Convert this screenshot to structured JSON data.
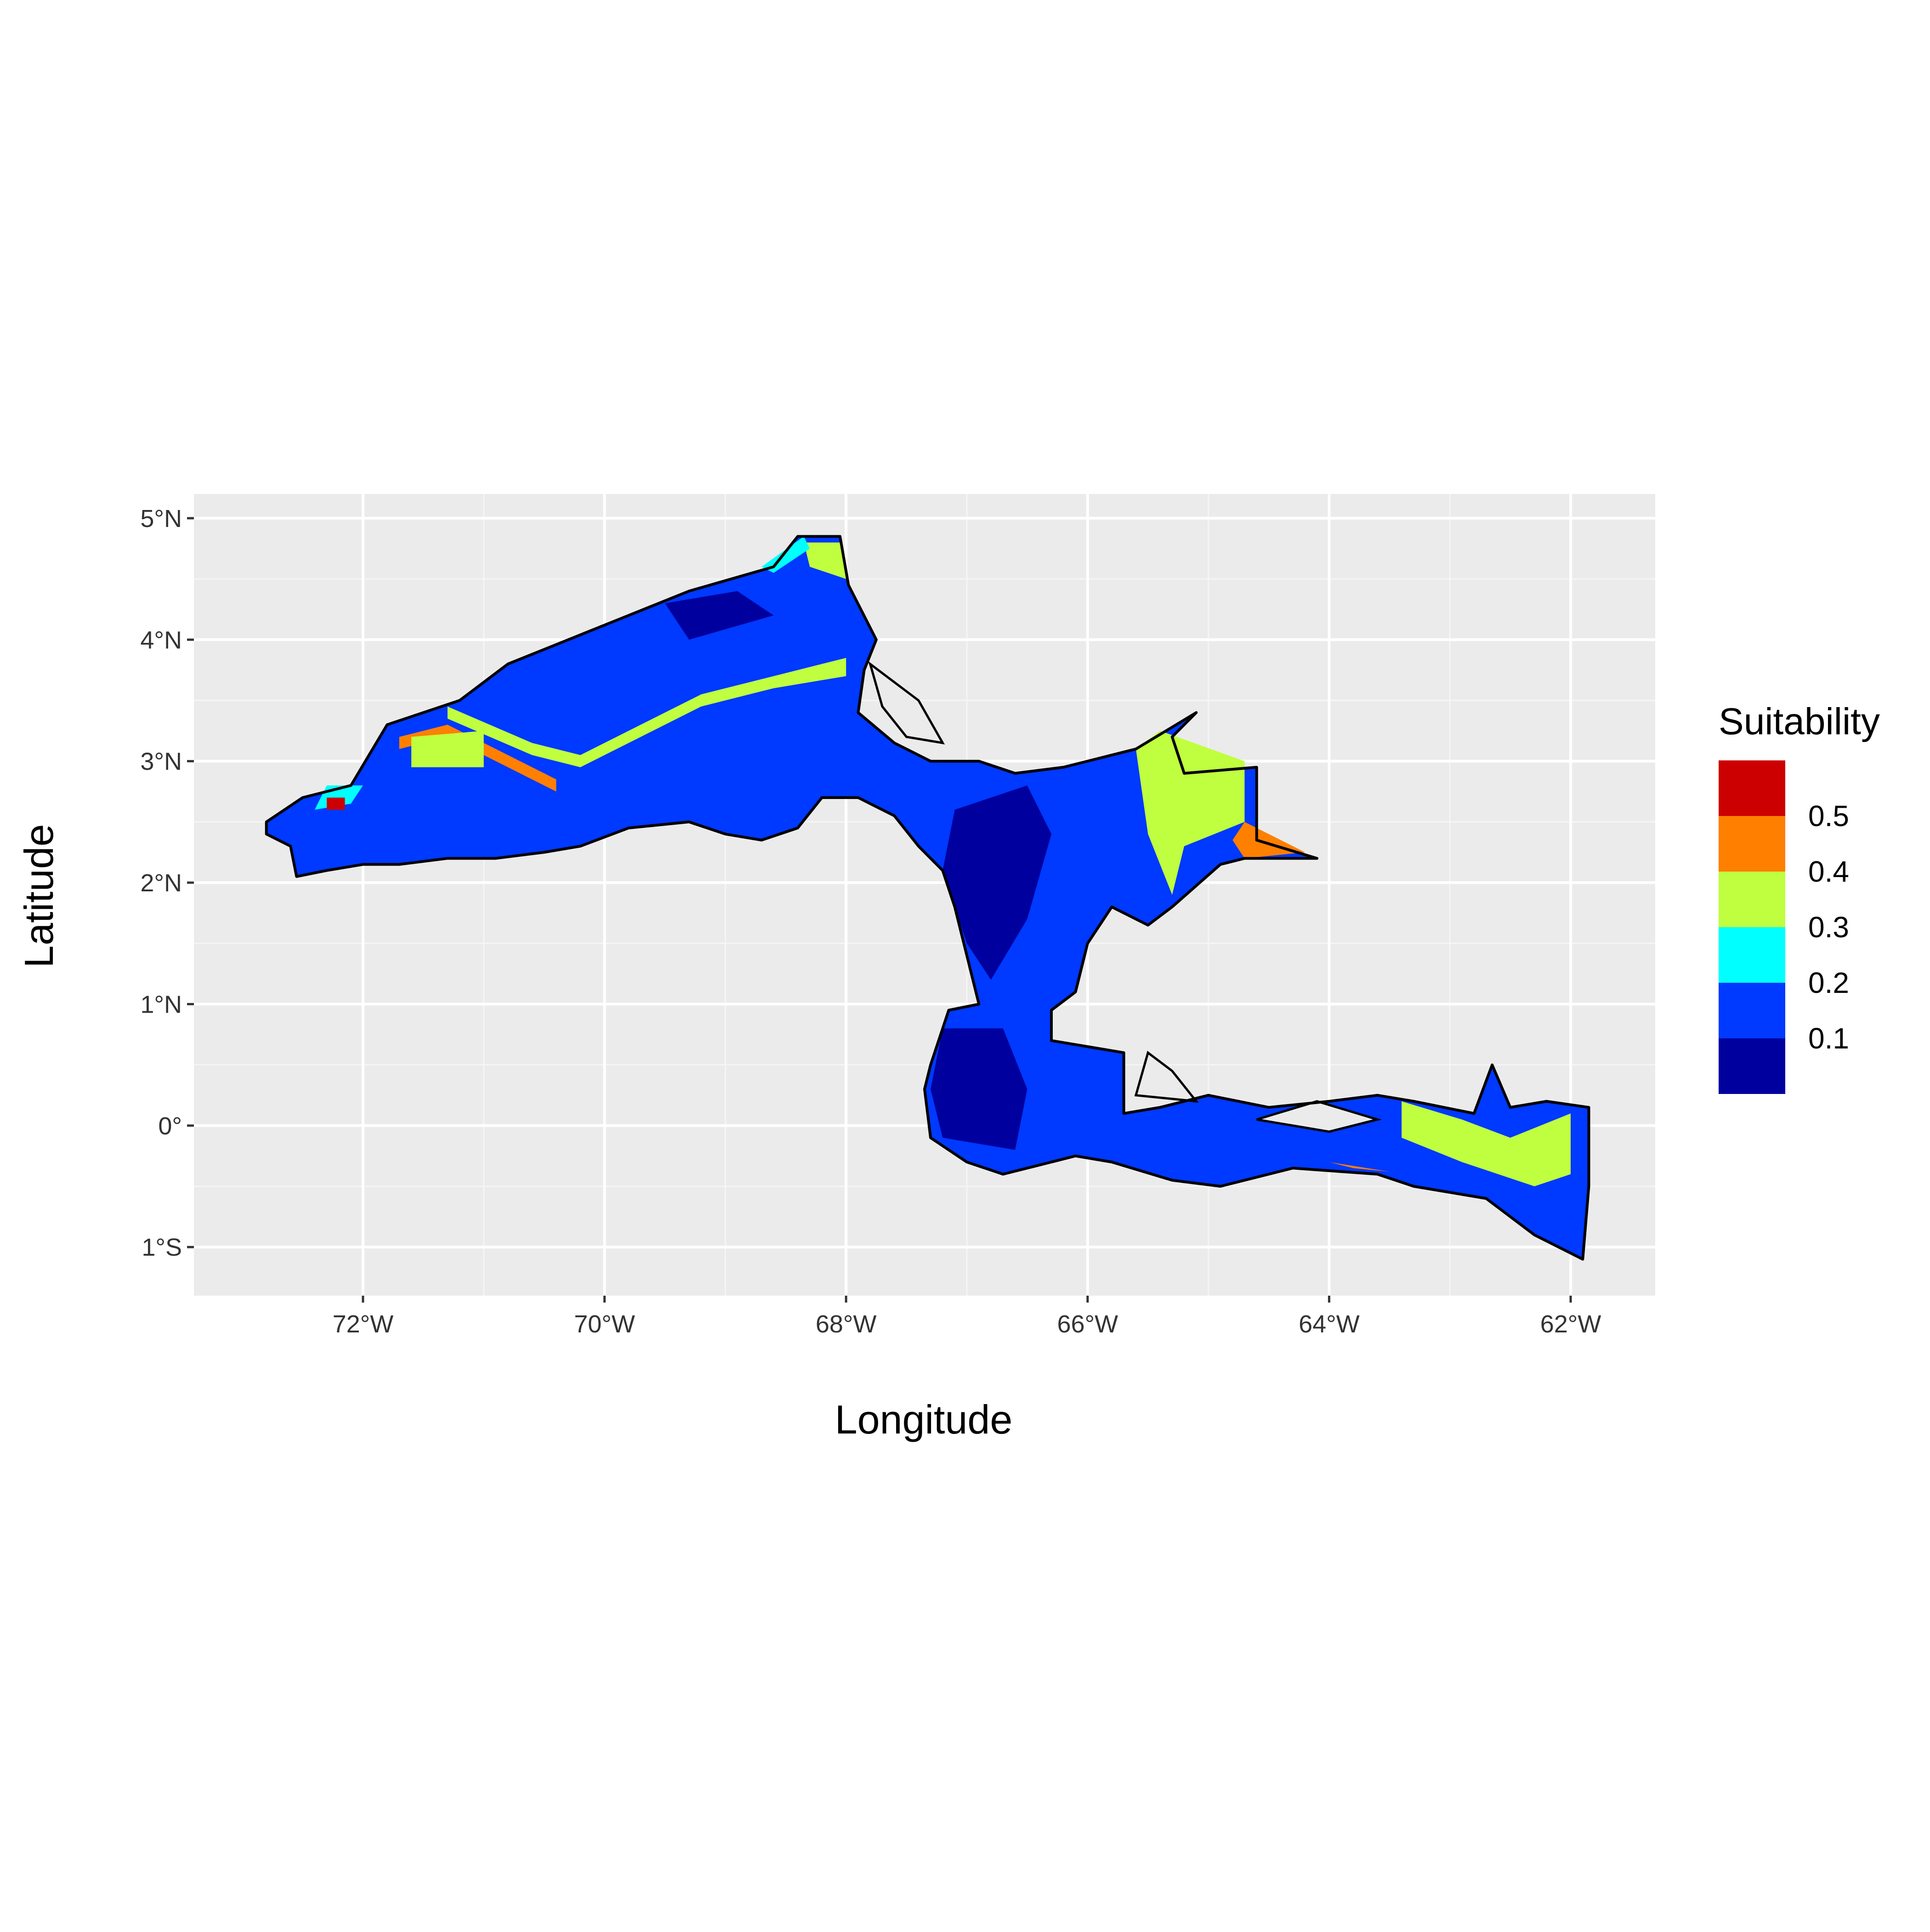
{
  "chart_data": {
    "type": "heatmap",
    "xlabel": "Longitude",
    "ylabel": "Latitude",
    "xlim": [
      -73.4,
      -61.3
    ],
    "ylim": [
      -1.4,
      5.2
    ],
    "grid": true,
    "legend_position": "right",
    "x_ticks": [
      {
        "value": -72,
        "label": "72°W"
      },
      {
        "value": -70,
        "label": "70°W"
      },
      {
        "value": -68,
        "label": "68°W"
      },
      {
        "value": -66,
        "label": "66°W"
      },
      {
        "value": -64,
        "label": "64°W"
      },
      {
        "value": -62,
        "label": "62°W"
      }
    ],
    "y_ticks": [
      {
        "value": 5,
        "label": "5°N"
      },
      {
        "value": 4,
        "label": "4°N"
      },
      {
        "value": 3,
        "label": "3°N"
      },
      {
        "value": 2,
        "label": "2°N"
      },
      {
        "value": 1,
        "label": "1°N"
      },
      {
        "value": 0,
        "label": "0°"
      },
      {
        "value": -1,
        "label": "1°S"
      }
    ],
    "legend": {
      "title": "Suitability",
      "labels": [
        "0.5",
        "0.4",
        "0.3",
        "0.2",
        "0.1"
      ],
      "classes": [
        {
          "color": "#CC0000"
        },
        {
          "color": "#FF7F00"
        },
        {
          "color": "#BFFF40"
        },
        {
          "color": "#00FFFF"
        },
        {
          "color": "#0039FF"
        },
        {
          "color": "#00009F"
        }
      ]
    },
    "base_class": 1,
    "regions": [
      {
        "name": "west-basin",
        "polygon": [
          [
            -72.8,
            2.5
          ],
          [
            -72.5,
            2.7
          ],
          [
            -72.1,
            2.8
          ],
          [
            -71.8,
            3.3
          ],
          [
            -71.2,
            3.5
          ],
          [
            -70.8,
            3.8
          ],
          [
            -70.3,
            4.0
          ],
          [
            -69.8,
            4.2
          ],
          [
            -69.3,
            4.4
          ],
          [
            -68.6,
            4.6
          ],
          [
            -68.4,
            4.85
          ],
          [
            -68.05,
            4.85
          ],
          [
            -67.98,
            4.45
          ],
          [
            -67.75,
            4.0
          ],
          [
            -67.85,
            3.75
          ],
          [
            -67.9,
            3.4
          ],
          [
            -67.6,
            3.15
          ],
          [
            -67.3,
            3.0
          ],
          [
            -66.9,
            3.0
          ],
          [
            -66.6,
            2.9
          ],
          [
            -66.2,
            2.95
          ],
          [
            -65.6,
            3.1
          ],
          [
            -65.1,
            3.4
          ],
          [
            -65.3,
            3.2
          ],
          [
            -65.2,
            2.9
          ],
          [
            -64.6,
            2.95
          ],
          [
            -64.6,
            2.55
          ],
          [
            -64.6,
            2.35
          ],
          [
            -64.1,
            2.2
          ],
          [
            -64.7,
            2.2
          ],
          [
            -64.9,
            2.15
          ],
          [
            -65.3,
            1.8
          ],
          [
            -65.5,
            1.65
          ],
          [
            -65.8,
            1.8
          ],
          [
            -66.0,
            1.5
          ],
          [
            -66.1,
            1.1
          ],
          [
            -66.3,
            0.95
          ],
          [
            -66.3,
            0.7
          ],
          [
            -66.0,
            0.65
          ],
          [
            -65.7,
            0.6
          ],
          [
            -65.7,
            0.1
          ],
          [
            -65.4,
            0.15
          ],
          [
            -65.0,
            0.25
          ],
          [
            -64.5,
            0.15
          ],
          [
            -64.0,
            0.2
          ],
          [
            -63.6,
            0.25
          ],
          [
            -63.3,
            0.2
          ],
          [
            -62.8,
            0.1
          ],
          [
            -62.65,
            0.5
          ],
          [
            -62.5,
            0.15
          ],
          [
            -62.2,
            0.2
          ],
          [
            -61.85,
            0.15
          ],
          [
            -61.85,
            -0.5
          ],
          [
            -61.9,
            -1.1
          ],
          [
            -62.3,
            -0.9
          ],
          [
            -62.7,
            -0.6
          ],
          [
            -63.3,
            -0.5
          ],
          [
            -63.6,
            -0.4
          ],
          [
            -64.3,
            -0.35
          ],
          [
            -64.9,
            -0.5
          ],
          [
            -65.3,
            -0.45
          ],
          [
            -65.8,
            -0.3
          ],
          [
            -66.1,
            -0.25
          ],
          [
            -66.3,
            -0.3
          ],
          [
            -66.7,
            -0.4
          ],
          [
            -67.0,
            -0.3
          ],
          [
            -67.3,
            -0.1
          ],
          [
            -67.35,
            0.3
          ],
          [
            -67.3,
            0.5
          ],
          [
            -67.15,
            0.95
          ],
          [
            -66.9,
            1.0
          ],
          [
            -67.0,
            1.4
          ],
          [
            -67.1,
            1.8
          ],
          [
            -67.2,
            2.1
          ],
          [
            -67.4,
            2.3
          ],
          [
            -67.6,
            2.55
          ],
          [
            -67.9,
            2.7
          ],
          [
            -68.2,
            2.7
          ],
          [
            -68.4,
            2.45
          ],
          [
            -68.7,
            2.35
          ],
          [
            -69.0,
            2.4
          ],
          [
            -69.3,
            2.5
          ],
          [
            -69.8,
            2.45
          ],
          [
            -70.2,
            2.3
          ],
          [
            -70.5,
            2.25
          ],
          [
            -70.9,
            2.2
          ],
          [
            -71.3,
            2.2
          ],
          [
            -71.7,
            2.15
          ],
          [
            -72.0,
            2.15
          ],
          [
            -72.3,
            2.1
          ],
          [
            -72.55,
            2.05
          ],
          [
            -72.6,
            2.3
          ],
          [
            -72.8,
            2.4
          ]
        ]
      },
      {
        "name": "cyan-stripe-a",
        "class": 3,
        "polygon": [
          [
            -71.3,
            3.45
          ],
          [
            -70.6,
            3.15
          ],
          [
            -70.2,
            3.05
          ],
          [
            -69.9,
            3.2
          ],
          [
            -69.2,
            3.55
          ],
          [
            -68.6,
            3.7
          ],
          [
            -68.0,
            3.85
          ],
          [
            -68.0,
            3.7
          ],
          [
            -68.6,
            3.6
          ],
          [
            -69.2,
            3.45
          ],
          [
            -69.9,
            3.1
          ],
          [
            -70.2,
            2.95
          ],
          [
            -70.6,
            3.05
          ],
          [
            -71.3,
            3.35
          ]
        ]
      },
      {
        "name": "green-stripe-a",
        "class": 4,
        "polygon": [
          [
            -71.7,
            3.2
          ],
          [
            -71.3,
            3.3
          ],
          [
            -70.8,
            3.05
          ],
          [
            -70.4,
            2.85
          ],
          [
            -70.4,
            2.75
          ],
          [
            -70.8,
            2.95
          ],
          [
            -71.3,
            3.2
          ],
          [
            -71.7,
            3.1
          ]
        ]
      },
      {
        "name": "cyan-block-west",
        "class": 3,
        "polygon": [
          [
            -71.6,
            3.2
          ],
          [
            -71.0,
            3.25
          ],
          [
            -71.0,
            2.95
          ],
          [
            -71.6,
            2.95
          ]
        ]
      },
      {
        "name": "cyan-block-east",
        "class": 3,
        "polygon": [
          [
            -65.4,
            3.25
          ],
          [
            -64.7,
            3.0
          ],
          [
            -64.7,
            2.5
          ],
          [
            -65.2,
            2.3
          ],
          [
            -65.3,
            1.9
          ],
          [
            -65.5,
            2.4
          ],
          [
            -65.6,
            3.1
          ]
        ]
      },
      {
        "name": "green-arm-east",
        "class": 4,
        "polygon": [
          [
            -64.7,
            2.5
          ],
          [
            -64.2,
            2.25
          ],
          [
            -64.7,
            2.2
          ],
          [
            -64.8,
            2.35
          ]
        ]
      },
      {
        "name": "dark-core-a",
        "class": 0,
        "polygon": [
          [
            -67.1,
            2.6
          ],
          [
            -66.5,
            2.8
          ],
          [
            -66.3,
            2.4
          ],
          [
            -66.5,
            1.7
          ],
          [
            -66.8,
            1.2
          ],
          [
            -67.0,
            1.5
          ],
          [
            -67.2,
            2.1
          ]
        ]
      },
      {
        "name": "dark-core-b",
        "class": 0,
        "polygon": [
          [
            -67.2,
            0.8
          ],
          [
            -66.7,
            0.8
          ],
          [
            -66.5,
            0.3
          ],
          [
            -66.6,
            -0.2
          ],
          [
            -67.2,
            -0.1
          ],
          [
            -67.3,
            0.3
          ]
        ]
      },
      {
        "name": "dark-core-c",
        "class": 0,
        "polygon": [
          [
            -69.5,
            4.3
          ],
          [
            -68.9,
            4.4
          ],
          [
            -68.6,
            4.2
          ],
          [
            -69.3,
            4.0
          ]
        ]
      },
      {
        "name": "cyan-edge-north",
        "class": 3,
        "polygon": [
          [
            -68.35,
            4.8
          ],
          [
            -68.05,
            4.8
          ],
          [
            -68.0,
            4.5
          ],
          [
            -68.3,
            4.6
          ]
        ]
      },
      {
        "name": "orange-edge-north",
        "class": 2,
        "polygon": [
          [
            -68.7,
            4.6
          ],
          [
            -68.35,
            4.85
          ],
          [
            -68.3,
            4.75
          ],
          [
            -68.6,
            4.55
          ]
        ]
      },
      {
        "name": "orange-edge-west",
        "class": 2,
        "polygon": [
          [
            -72.3,
            2.8
          ],
          [
            -72.0,
            2.8
          ],
          [
            -72.1,
            2.65
          ],
          [
            -72.4,
            2.6
          ]
        ]
      },
      {
        "name": "red-spot-west",
        "class": 1.5,
        "polygon": [
          [
            -72.3,
            2.7
          ],
          [
            -72.15,
            2.7
          ],
          [
            -72.15,
            2.6
          ],
          [
            -72.3,
            2.6
          ]
        ]
      },
      {
        "name": "cyan-east-arm",
        "class": 3,
        "polygon": [
          [
            -63.4,
            0.2
          ],
          [
            -62.9,
            0.05
          ],
          [
            -62.5,
            -0.1
          ],
          [
            -62.0,
            0.1
          ],
          [
            -62.0,
            -0.4
          ],
          [
            -62.3,
            -0.5
          ],
          [
            -62.9,
            -0.3
          ],
          [
            -63.4,
            -0.1
          ]
        ]
      },
      {
        "name": "green-strip-south",
        "class": 4,
        "polygon": [
          [
            -64.4,
            -0.2
          ],
          [
            -63.8,
            -0.35
          ],
          [
            -63.5,
            -0.38
          ],
          [
            -64.0,
            -0.3
          ]
        ]
      }
    ],
    "lakes": [
      {
        "name": "river-channel-north",
        "polygon": [
          [
            -67.8,
            3.8
          ],
          [
            -67.4,
            3.5
          ],
          [
            -67.2,
            3.15
          ],
          [
            -67.5,
            3.2
          ],
          [
            -67.7,
            3.45
          ]
        ]
      },
      {
        "name": "channel-gap-south",
        "polygon": [
          [
            -65.5,
            0.6
          ],
          [
            -65.3,
            0.45
          ],
          [
            -65.1,
            0.2
          ],
          [
            -65.6,
            0.25
          ]
        ]
      },
      {
        "name": "channel-gap-east",
        "polygon": [
          [
            -64.6,
            0.05
          ],
          [
            -64.0,
            -0.05
          ],
          [
            -63.6,
            0.05
          ],
          [
            -64.1,
            0.2
          ]
        ]
      }
    ]
  }
}
